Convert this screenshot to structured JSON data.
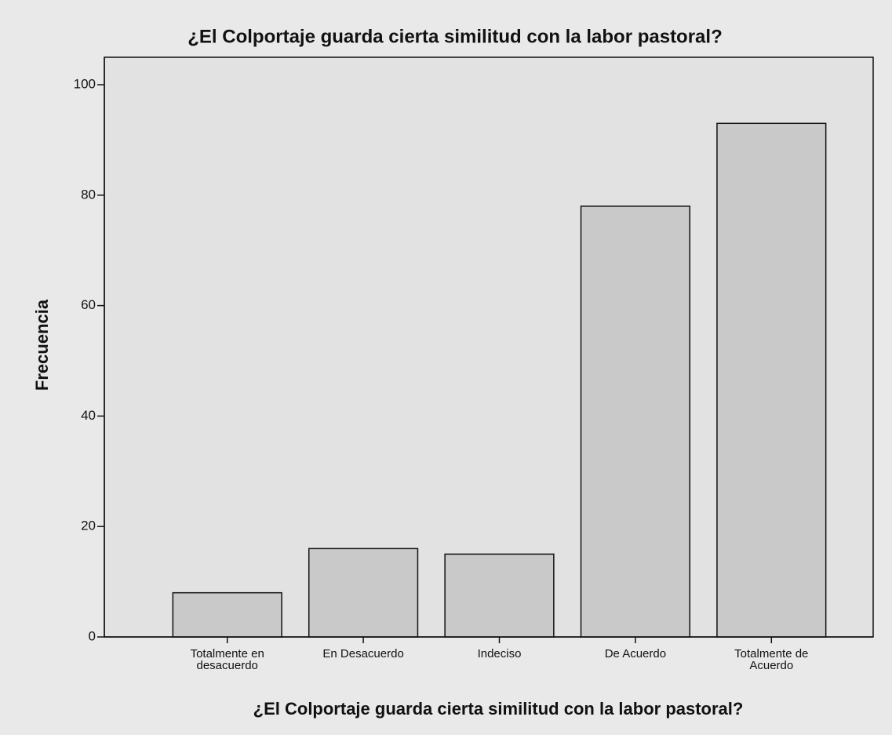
{
  "chart_data": {
    "type": "bar",
    "title": "¿El Colportaje guarda cierta similitud con la labor pastoral?",
    "x_label": "¿El Colportaje guarda cierta similitud con la labor pastoral?",
    "y_label": "Frecuencia",
    "categories": [
      "Totalmente en desacuerdo",
      "En Desacuerdo",
      "Indeciso",
      "De Acuerdo",
      "Totalmente de Acuerdo"
    ],
    "values": [
      8,
      16,
      15,
      78,
      93
    ],
    "color": "#c9c9c9",
    "ylim": [
      0,
      100
    ],
    "yticks": [
      0,
      20,
      40,
      60,
      80,
      100
    ],
    "grid": false
  }
}
